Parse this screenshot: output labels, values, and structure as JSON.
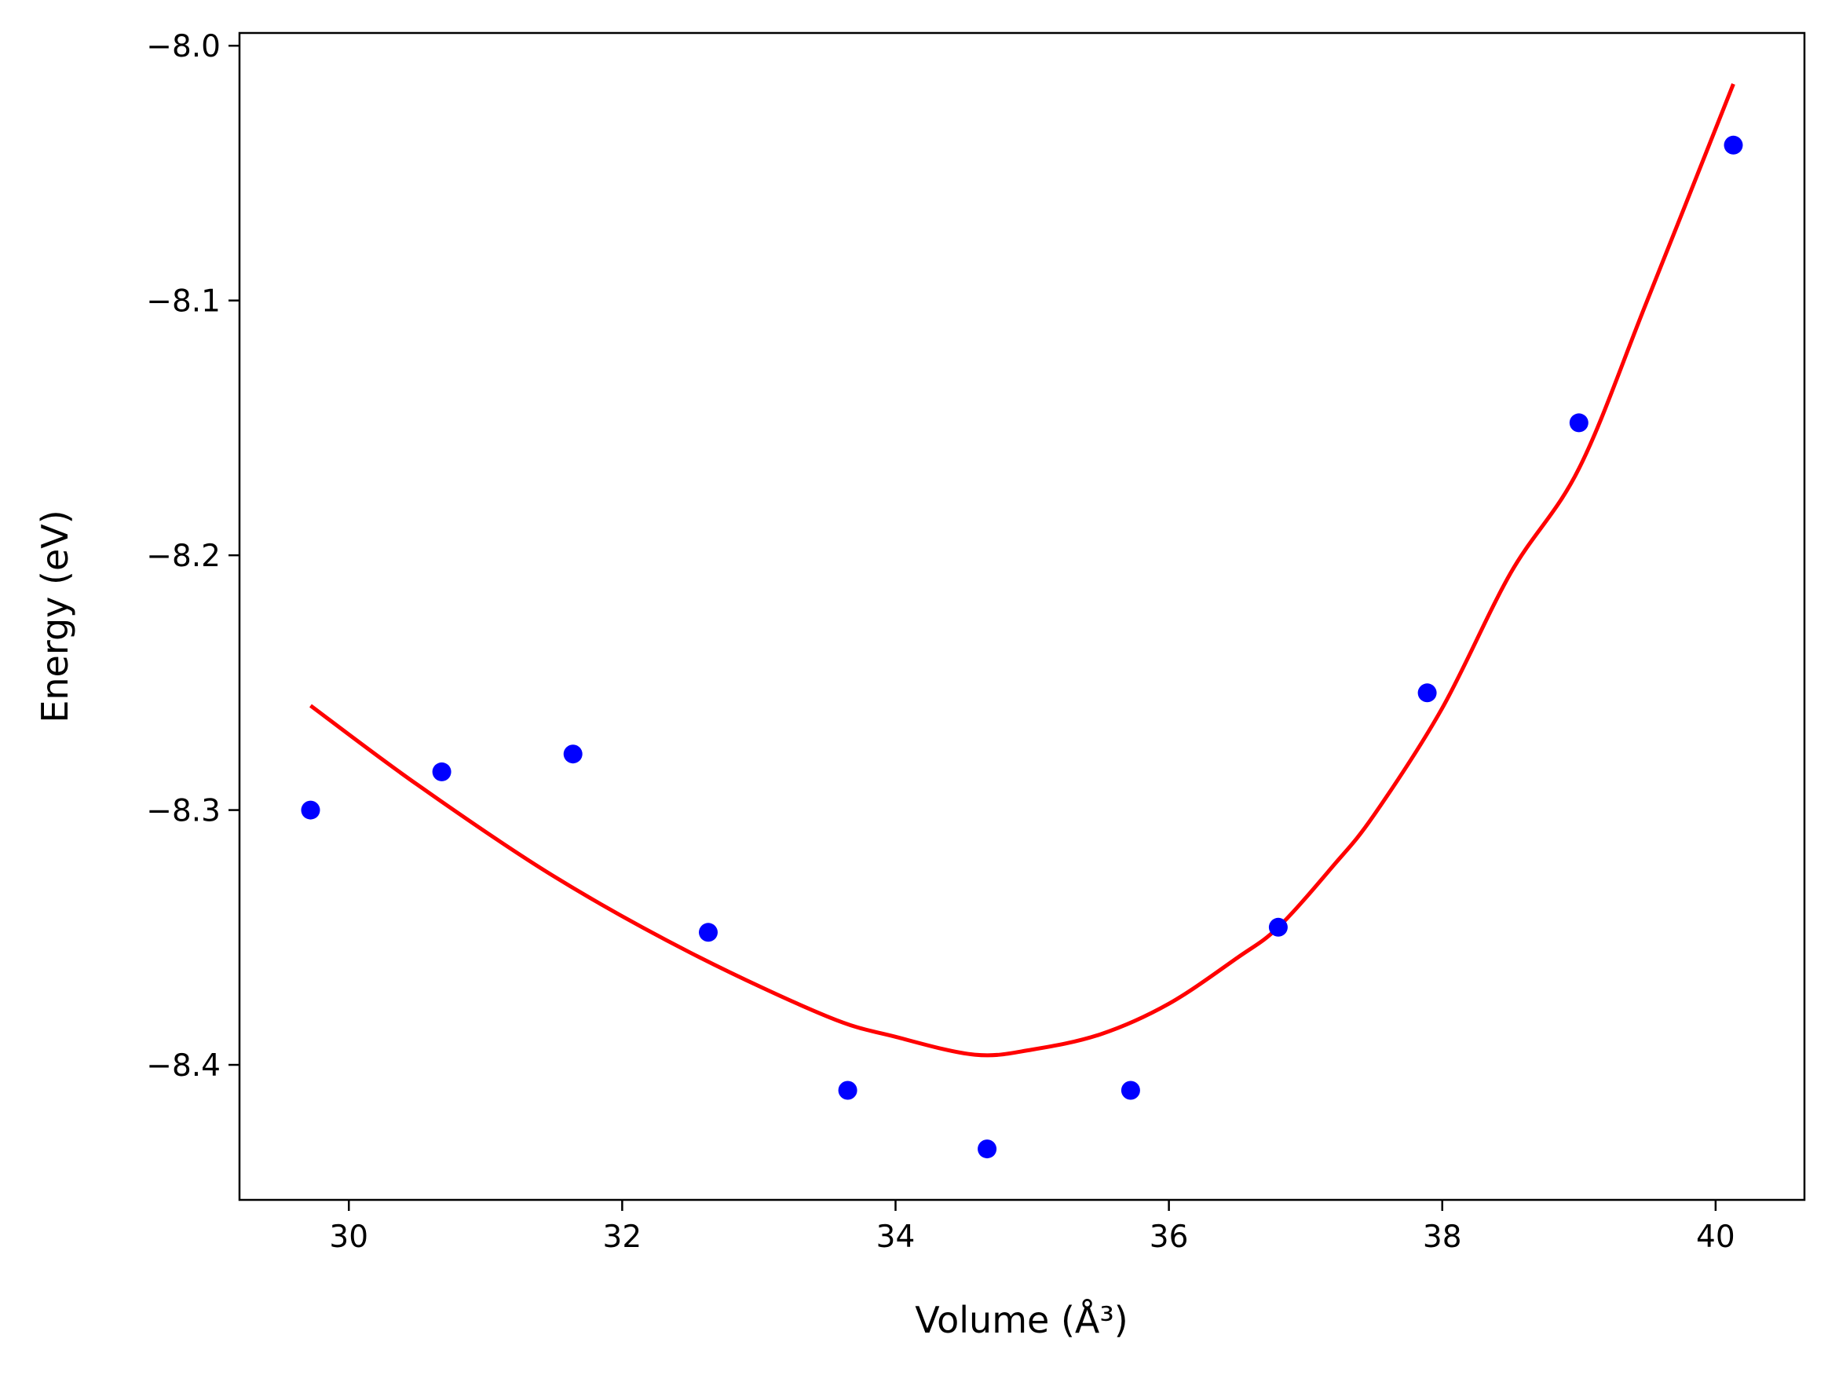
{
  "chart_data": {
    "type": "scatter",
    "title": "",
    "xlabel": "Volume (Å³)",
    "ylabel": "Energy (eV)",
    "xlim": [
      29.2,
      40.65
    ],
    "ylim": [
      -8.453,
      -7.995
    ],
    "x_ticks": [
      30,
      32,
      34,
      36,
      38,
      40
    ],
    "x_tick_labels": [
      "30",
      "32",
      "34",
      "36",
      "38",
      "40"
    ],
    "y_ticks": [
      -8.0,
      -8.1,
      -8.2,
      -8.3,
      -8.4
    ],
    "y_tick_labels": [
      "−8.0",
      "−8.1",
      "−8.2",
      "−8.3",
      "−8.4"
    ],
    "grid": false,
    "legend": "none",
    "colors": {
      "points": "#0000ff",
      "fit": "#ff0000",
      "axes": "#000000"
    },
    "series": [
      {
        "kind": "points",
        "x": [
          29.72,
          30.68,
          31.64,
          32.63,
          33.65,
          34.67,
          35.72,
          36.8,
          37.89,
          39.0,
          40.13
        ],
        "y": [
          -8.3,
          -8.285,
          -8.278,
          -8.348,
          -8.41,
          -8.433,
          -8.41,
          -8.346,
          -8.254,
          -8.148,
          -8.039
        ]
      },
      {
        "kind": "fit-curve",
        "x": [
          29.72,
          30.5,
          31.5,
          32.5,
          33.5,
          34.0,
          34.58,
          35.0,
          35.5,
          36.0,
          36.5,
          36.8,
          37.2,
          37.5,
          38.0,
          38.5,
          39.0,
          39.5,
          40.13
        ],
        "y": [
          -8.259,
          -8.29,
          -8.326,
          -8.356,
          -8.381,
          -8.389,
          -8.396,
          -8.394,
          -8.388,
          -8.376,
          -8.358,
          -8.346,
          -8.322,
          -8.302,
          -8.26,
          -8.207,
          -8.166,
          -8.1,
          -8.015
        ]
      }
    ]
  }
}
